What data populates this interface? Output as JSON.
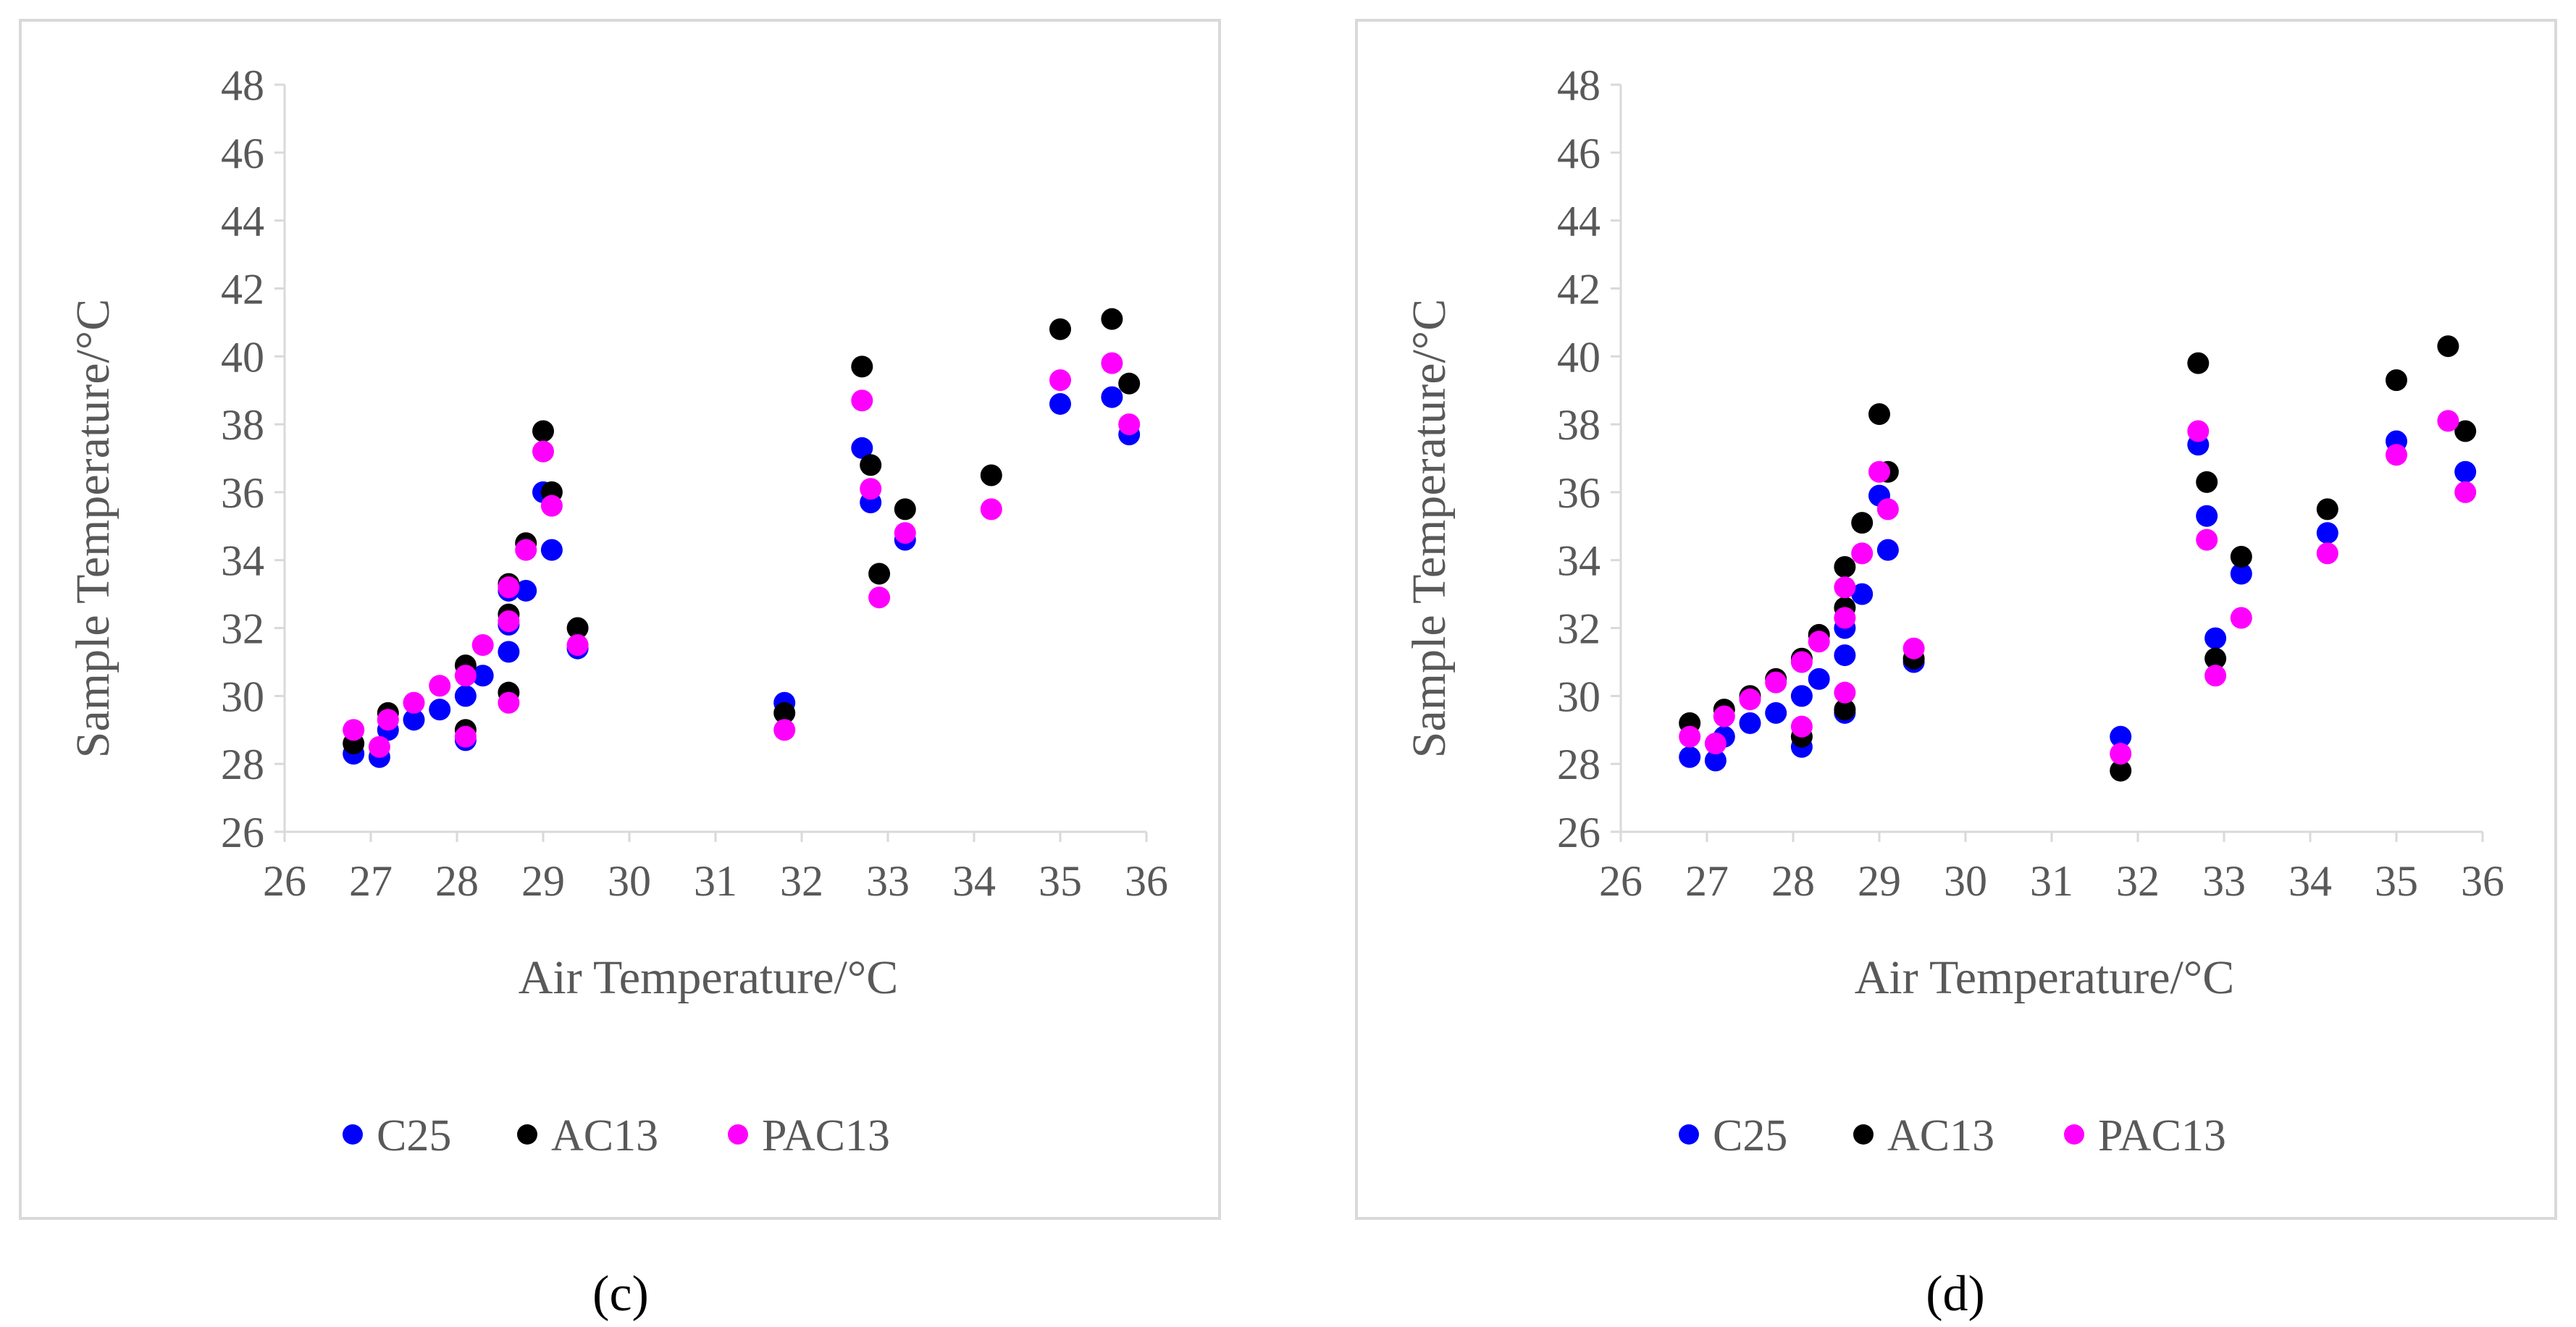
{
  "panels": [
    {
      "caption": "(c)",
      "chart_data": {
        "type": "scatter",
        "title": "",
        "xlabel": "Air Temperature/°C",
        "ylabel": "Sample Temperature/°C",
        "xlim": [
          26,
          36
        ],
        "ylim": [
          26,
          48
        ],
        "xticks": [
          "26",
          "27",
          "28",
          "29",
          "30",
          "31",
          "32",
          "33",
          "34",
          "35",
          "36"
        ],
        "yticks": [
          "26",
          "28",
          "30",
          "32",
          "34",
          "36",
          "38",
          "40",
          "42",
          "44",
          "46",
          "48"
        ],
        "grid": false,
        "legend": "bottom",
        "series": [
          {
            "name": "C25",
            "color": "#0000FF",
            "points": [
              [
                26.8,
                28.3
              ],
              [
                27.1,
                28.2
              ],
              [
                27.2,
                29.0
              ],
              [
                27.5,
                29.3
              ],
              [
                27.8,
                29.6
              ],
              [
                28.1,
                28.7
              ],
              [
                28.1,
                30.0
              ],
              [
                28.3,
                30.6
              ],
              [
                28.6,
                31.3
              ],
              [
                28.6,
                32.1
              ],
              [
                28.6,
                33.1
              ],
              [
                28.8,
                33.1
              ],
              [
                29.0,
                36.0
              ],
              [
                29.1,
                34.3
              ],
              [
                29.4,
                31.4
              ],
              [
                31.8,
                29.8
              ],
              [
                32.7,
                37.3
              ],
              [
                32.8,
                35.7
              ],
              [
                33.2,
                34.6
              ],
              [
                35.0,
                38.6
              ],
              [
                35.6,
                38.8
              ],
              [
                35.8,
                37.7
              ]
            ]
          },
          {
            "name": "AC13",
            "color": "#000000",
            "points": [
              [
                26.8,
                28.6
              ],
              [
                27.2,
                29.5
              ],
              [
                28.1,
                29.0
              ],
              [
                28.1,
                30.9
              ],
              [
                28.6,
                30.1
              ],
              [
                28.6,
                32.4
              ],
              [
                28.6,
                33.3
              ],
              [
                28.8,
                34.5
              ],
              [
                29.0,
                37.8
              ],
              [
                29.1,
                36.0
              ],
              [
                29.4,
                32.0
              ],
              [
                31.8,
                29.5
              ],
              [
                32.7,
                39.7
              ],
              [
                32.8,
                36.8
              ],
              [
                32.9,
                33.6
              ],
              [
                33.2,
                35.5
              ],
              [
                34.2,
                36.5
              ],
              [
                35.0,
                40.8
              ],
              [
                35.6,
                41.1
              ],
              [
                35.8,
                39.2
              ]
            ]
          },
          {
            "name": "PAC13",
            "color": "#FF00FF",
            "points": [
              [
                26.8,
                29.0
              ],
              [
                27.1,
                28.5
              ],
              [
                27.2,
                29.3
              ],
              [
                27.5,
                29.8
              ],
              [
                27.8,
                30.3
              ],
              [
                28.1,
                30.6
              ],
              [
                28.1,
                28.8
              ],
              [
                28.3,
                31.5
              ],
              [
                28.6,
                29.8
              ],
              [
                28.6,
                32.2
              ],
              [
                28.6,
                33.2
              ],
              [
                28.8,
                34.3
              ],
              [
                29.0,
                37.2
              ],
              [
                29.1,
                35.6
              ],
              [
                29.4,
                31.5
              ],
              [
                31.8,
                29.0
              ],
              [
                32.7,
                38.7
              ],
              [
                32.8,
                36.1
              ],
              [
                32.9,
                32.9
              ],
              [
                33.2,
                34.8
              ],
              [
                34.2,
                35.5
              ],
              [
                35.0,
                39.3
              ],
              [
                35.6,
                39.8
              ],
              [
                35.8,
                38.0
              ]
            ]
          }
        ]
      }
    },
    {
      "caption": "(d)",
      "chart_data": {
        "type": "scatter",
        "title": "",
        "xlabel": "Air Temperature/°C",
        "ylabel": "Sample Temperature/°C",
        "xlim": [
          26,
          36
        ],
        "ylim": [
          26,
          48
        ],
        "xticks": [
          "26",
          "27",
          "28",
          "29",
          "30",
          "31",
          "32",
          "33",
          "34",
          "35",
          "36"
        ],
        "yticks": [
          "26",
          "28",
          "30",
          "32",
          "34",
          "36",
          "38",
          "40",
          "42",
          "44",
          "46",
          "48"
        ],
        "grid": false,
        "legend": "bottom",
        "series": [
          {
            "name": "C25",
            "color": "#0000FF",
            "points": [
              [
                26.8,
                28.2
              ],
              [
                27.1,
                28.1
              ],
              [
                27.2,
                28.8
              ],
              [
                27.5,
                29.2
              ],
              [
                27.8,
                29.5
              ],
              [
                28.1,
                28.5
              ],
              [
                28.1,
                30.0
              ],
              [
                28.3,
                30.5
              ],
              [
                28.6,
                29.5
              ],
              [
                28.6,
                31.2
              ],
              [
                28.6,
                32.0
              ],
              [
                28.8,
                33.0
              ],
              [
                29.0,
                35.9
              ],
              [
                29.1,
                34.3
              ],
              [
                29.4,
                31.0
              ],
              [
                31.8,
                28.8
              ],
              [
                32.7,
                37.4
              ],
              [
                32.8,
                35.3
              ],
              [
                32.9,
                31.7
              ],
              [
                33.2,
                33.6
              ],
              [
                34.2,
                34.8
              ],
              [
                35.0,
                37.5
              ],
              [
                35.8,
                36.6
              ]
            ]
          },
          {
            "name": "AC13",
            "color": "#000000",
            "points": [
              [
                26.8,
                29.2
              ],
              [
                27.2,
                29.6
              ],
              [
                27.5,
                30.0
              ],
              [
                27.8,
                30.5
              ],
              [
                28.1,
                28.8
              ],
              [
                28.1,
                31.1
              ],
              [
                28.3,
                31.8
              ],
              [
                28.6,
                29.6
              ],
              [
                28.6,
                32.6
              ],
              [
                28.6,
                33.8
              ],
              [
                28.8,
                35.1
              ],
              [
                29.0,
                38.3
              ],
              [
                29.1,
                36.6
              ],
              [
                29.4,
                31.1
              ],
              [
                31.8,
                27.8
              ],
              [
                32.7,
                39.8
              ],
              [
                32.8,
                36.3
              ],
              [
                32.9,
                31.1
              ],
              [
                33.2,
                34.1
              ],
              [
                34.2,
                35.5
              ],
              [
                35.0,
                39.3
              ],
              [
                35.6,
                40.3
              ],
              [
                35.8,
                37.8
              ]
            ]
          },
          {
            "name": "PAC13",
            "color": "#FF00FF",
            "points": [
              [
                26.8,
                28.8
              ],
              [
                27.1,
                28.6
              ],
              [
                27.2,
                29.4
              ],
              [
                27.5,
                29.9
              ],
              [
                27.8,
                30.4
              ],
              [
                28.1,
                29.1
              ],
              [
                28.1,
                31.0
              ],
              [
                28.3,
                31.6
              ],
              [
                28.6,
                30.1
              ],
              [
                28.6,
                32.3
              ],
              [
                28.6,
                33.2
              ],
              [
                28.8,
                34.2
              ],
              [
                29.0,
                36.6
              ],
              [
                29.1,
                35.5
              ],
              [
                29.4,
                31.4
              ],
              [
                31.8,
                28.3
              ],
              [
                32.7,
                37.8
              ],
              [
                32.8,
                34.6
              ],
              [
                32.9,
                30.6
              ],
              [
                33.2,
                32.3
              ],
              [
                34.2,
                34.2
              ],
              [
                35.0,
                37.1
              ],
              [
                35.6,
                38.1
              ],
              [
                35.8,
                36.0
              ]
            ]
          }
        ]
      }
    }
  ]
}
